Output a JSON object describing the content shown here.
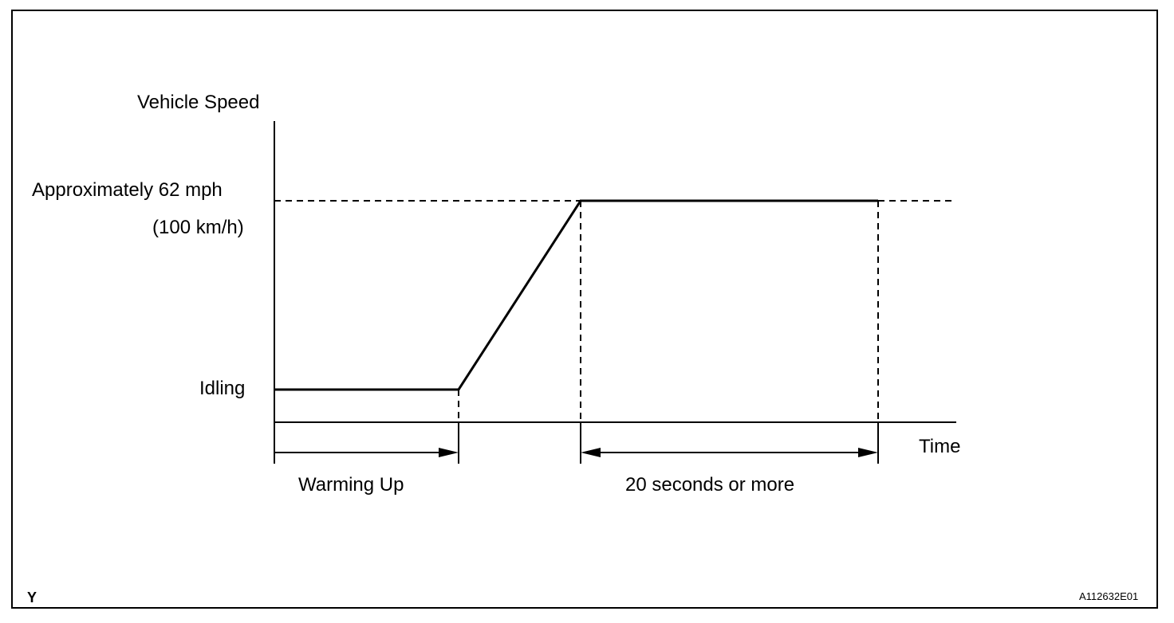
{
  "diagram": {
    "y_axis_label": "Vehicle Speed",
    "x_axis_label": "Time",
    "speed_label_line1": "Approximately 62 mph",
    "speed_label_line2": "(100 km/h)",
    "idle_label": "Idling",
    "phase_warmup_label": "Warming Up",
    "phase_hold_label": "20 seconds or more",
    "corner_mark": "Y",
    "figure_code": "A112632E01"
  }
}
